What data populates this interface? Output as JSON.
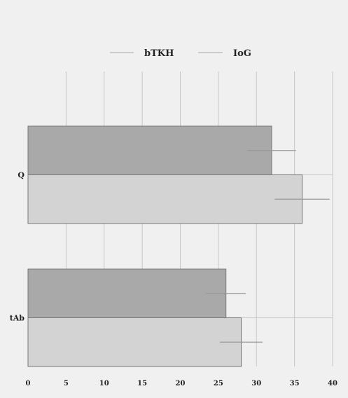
{
  "chart_data": {
    "type": "bar",
    "orientation": "horizontal",
    "title": "",
    "xlabel": "",
    "ylabel": "",
    "categories": [
      "Q",
      "tAb"
    ],
    "series": [
      {
        "name": "bTKH",
        "values": [
          32,
          26
        ],
        "errors": [
          3.2,
          2.6
        ],
        "color": "#a9a9a9"
      },
      {
        "name": "IoG",
        "values": [
          36,
          28
        ],
        "errors": [
          3.6,
          2.8
        ],
        "color": "#d3d3d3"
      }
    ],
    "xlim": [
      0,
      40
    ],
    "xticks": [
      0,
      5,
      10,
      15,
      20,
      25,
      30,
      35,
      40
    ],
    "grid": true,
    "legend_position": "top-center",
    "colors": {
      "background": "#f0f0f0",
      "grid": "#c8c8c8",
      "bar_edge": "#777777",
      "error_bar": "#999999",
      "legend_line": "#c0c0c0"
    }
  }
}
